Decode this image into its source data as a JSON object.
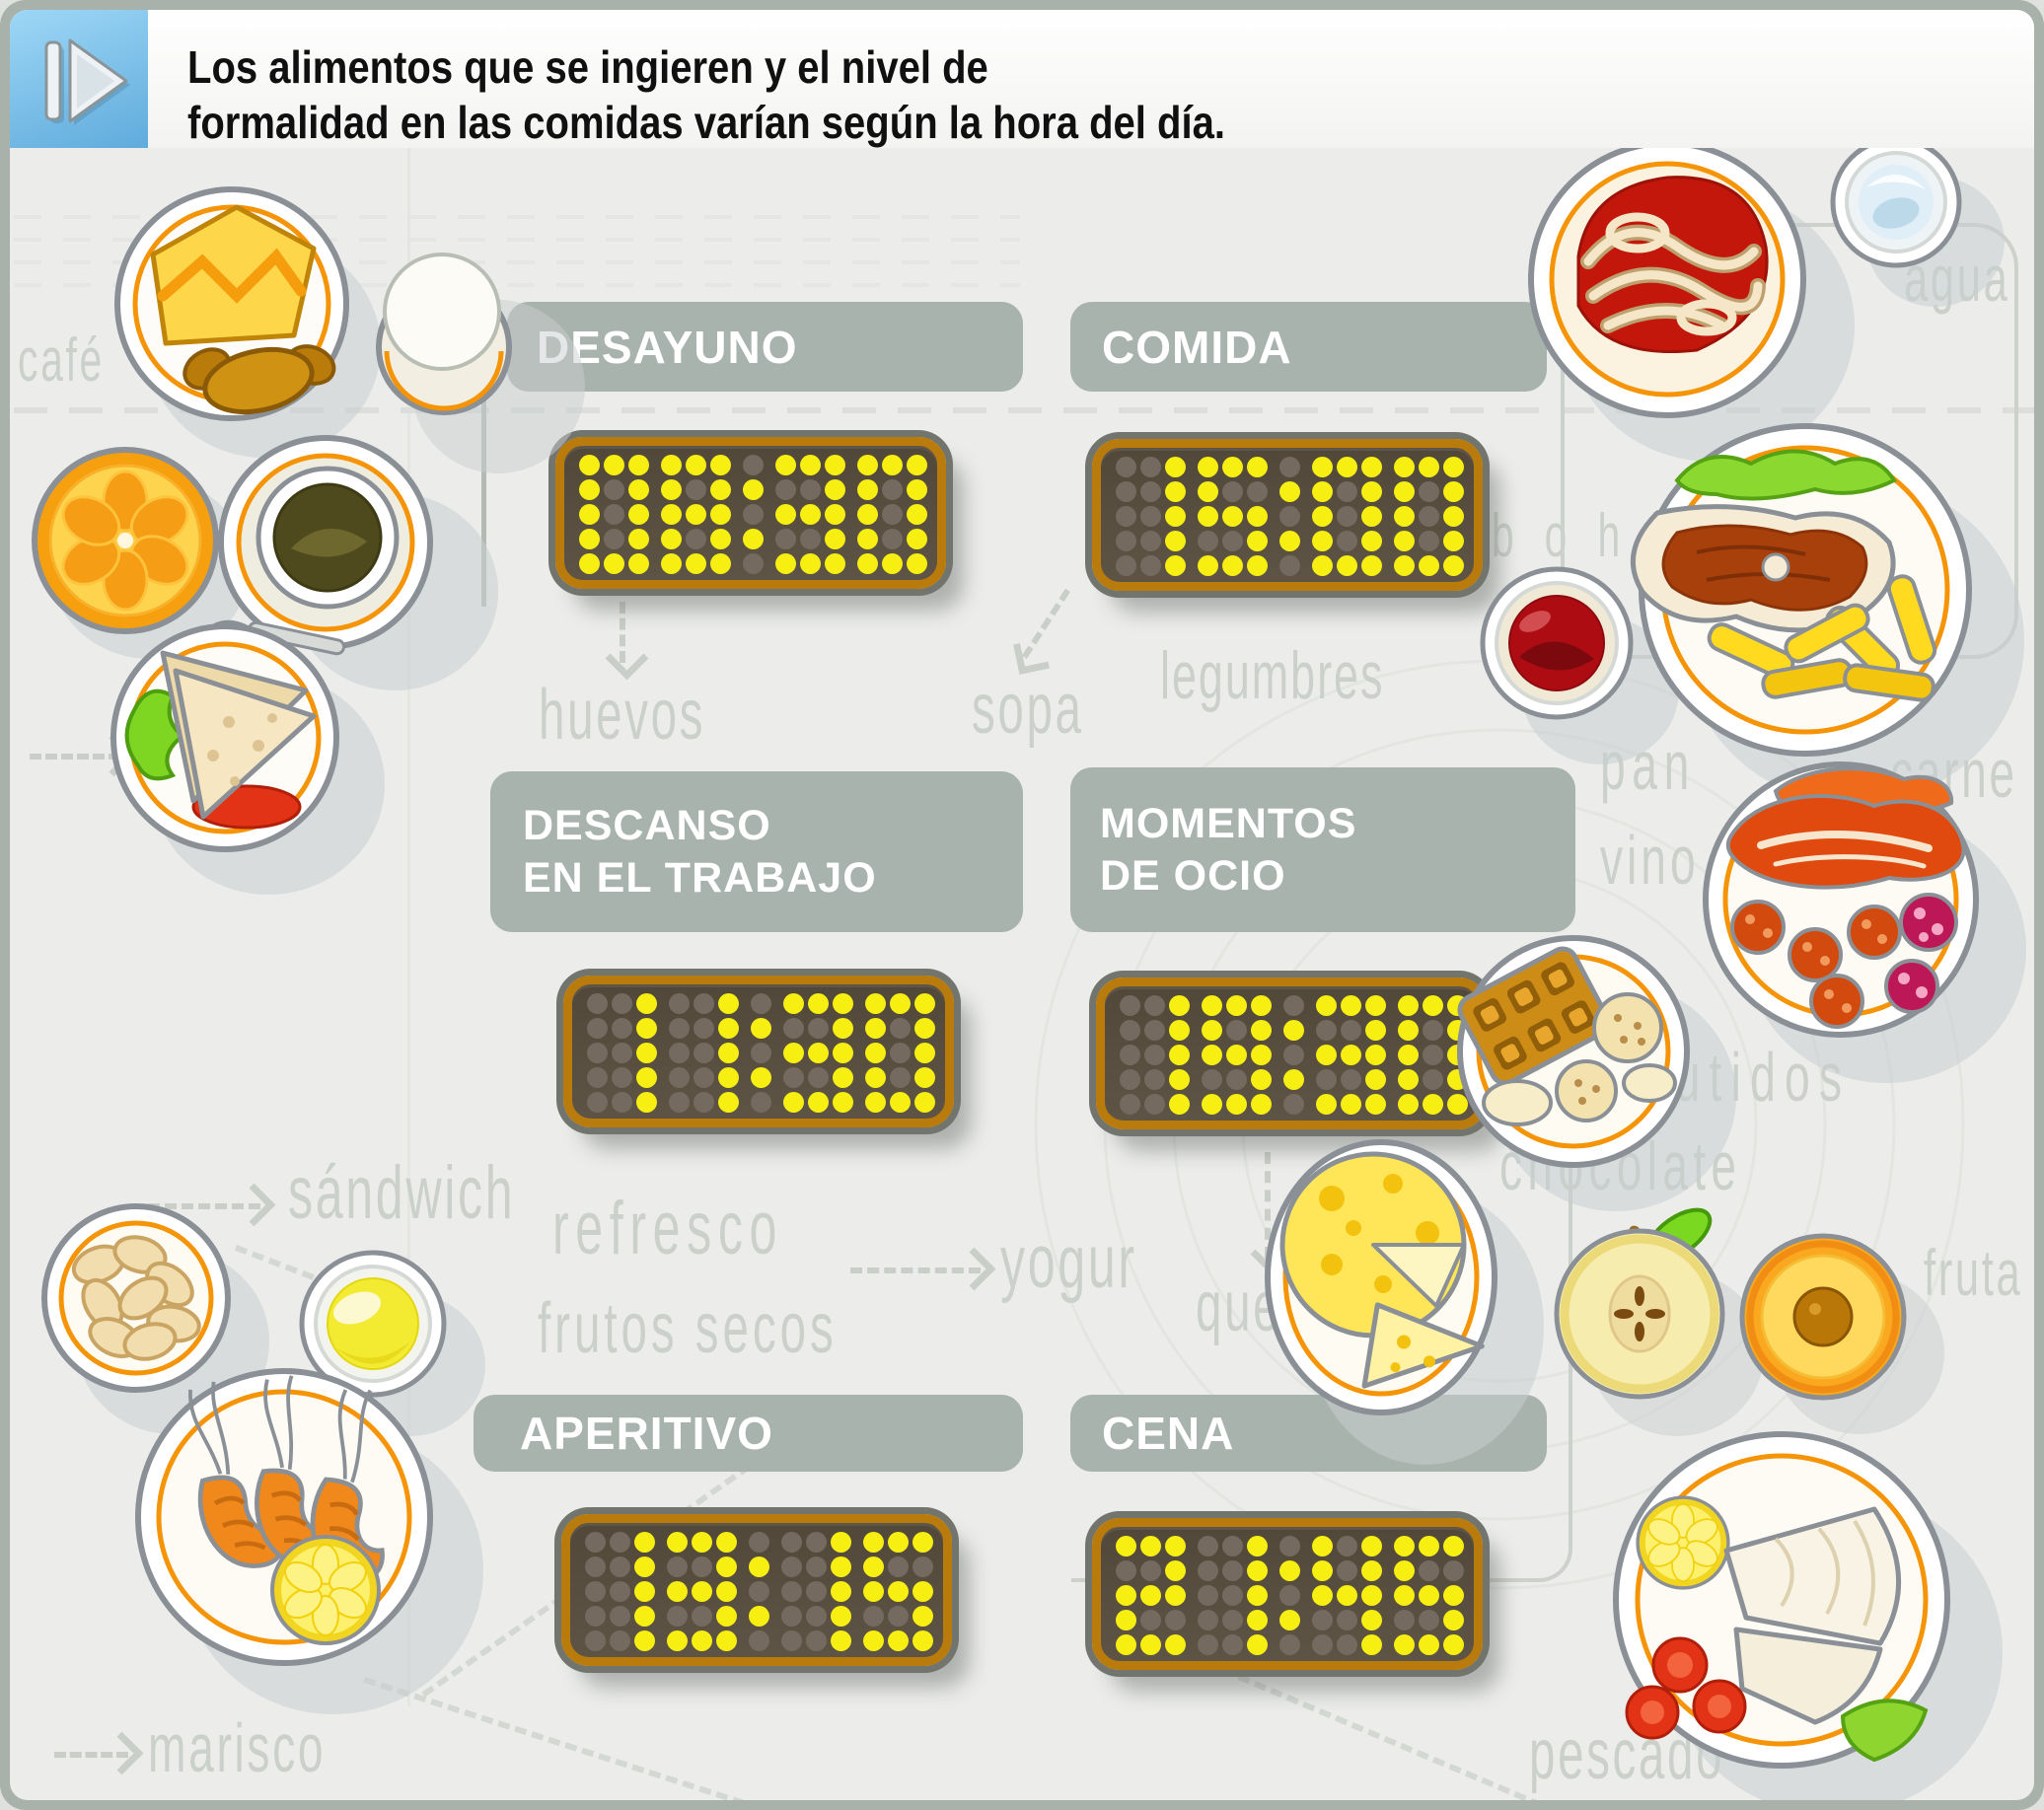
{
  "header": {
    "title_line1": "Los alimentos que se ingieren y el nivel de",
    "title_line2": "formalidad en las comidas varían según la hora del día.",
    "play_icon": "play-icon"
  },
  "meals": [
    {
      "name": "desayuno",
      "label_lines": [
        "DESAYUNO"
      ],
      "time": "08:30"
    },
    {
      "name": "comida",
      "label_lines": [
        "COMIDA"
      ],
      "time": "15:00"
    },
    {
      "name": "descanso",
      "label_lines": [
        "DESCANSO",
        "EN EL TRABAJO"
      ],
      "time": "11:30"
    },
    {
      "name": "momentos-ocio",
      "label_lines": [
        "MOMENTOS",
        "DE OCIO"
      ],
      "time": "19:30"
    },
    {
      "name": "aperitivo",
      "label_lines": [
        "APERITIVO"
      ],
      "time": "13:15"
    },
    {
      "name": "cena",
      "label_lines": [
        "CENA"
      ],
      "time": "21:45"
    }
  ],
  "background_words": {
    "cafe": "café",
    "cereal": "cereal",
    "huevos": "huevos",
    "sopa": "sopa",
    "legumbres": "legumbres",
    "carbohidratos": "carbohidratos",
    "pan": "pan",
    "vino": "vino",
    "carne": "carne",
    "agua": "agua",
    "sandwich": "sándwich",
    "refresco": "refresco",
    "frutos_secos": "frutos secos",
    "yogur": "yogur",
    "queso": "queso",
    "embutidos": "embutidos",
    "chocolate": "chocolate",
    "fruta": "fruta",
    "marisco": "marisco",
    "pescado": "pescado"
  },
  "food_icons": [
    "breakfast-plate",
    "boiled-egg",
    "orange-slice",
    "coffee-cup",
    "spaghetti-plate",
    "water-glass",
    "wine-glass",
    "steak-and-fries-plate",
    "sandwich-plate",
    "waffle-and-cookies-plate",
    "charcuterie-plate",
    "cheese-plate",
    "apple-half",
    "peach-half",
    "almonds-plate",
    "aperitif-drink",
    "shrimp-plate",
    "fish-plate"
  ],
  "colors": {
    "band": "#a9b3ad",
    "clock_frame_orange": "#b87b0c",
    "clock_panel": "#554b3c",
    "dot_lit": "#f8ef12",
    "dot_unlit": "#756a60",
    "accent_orange": "#f49406",
    "background_word": "#cbd1ca",
    "play_button_blue": "#7dc4ef",
    "frame_gray": "#a9b1ab"
  }
}
